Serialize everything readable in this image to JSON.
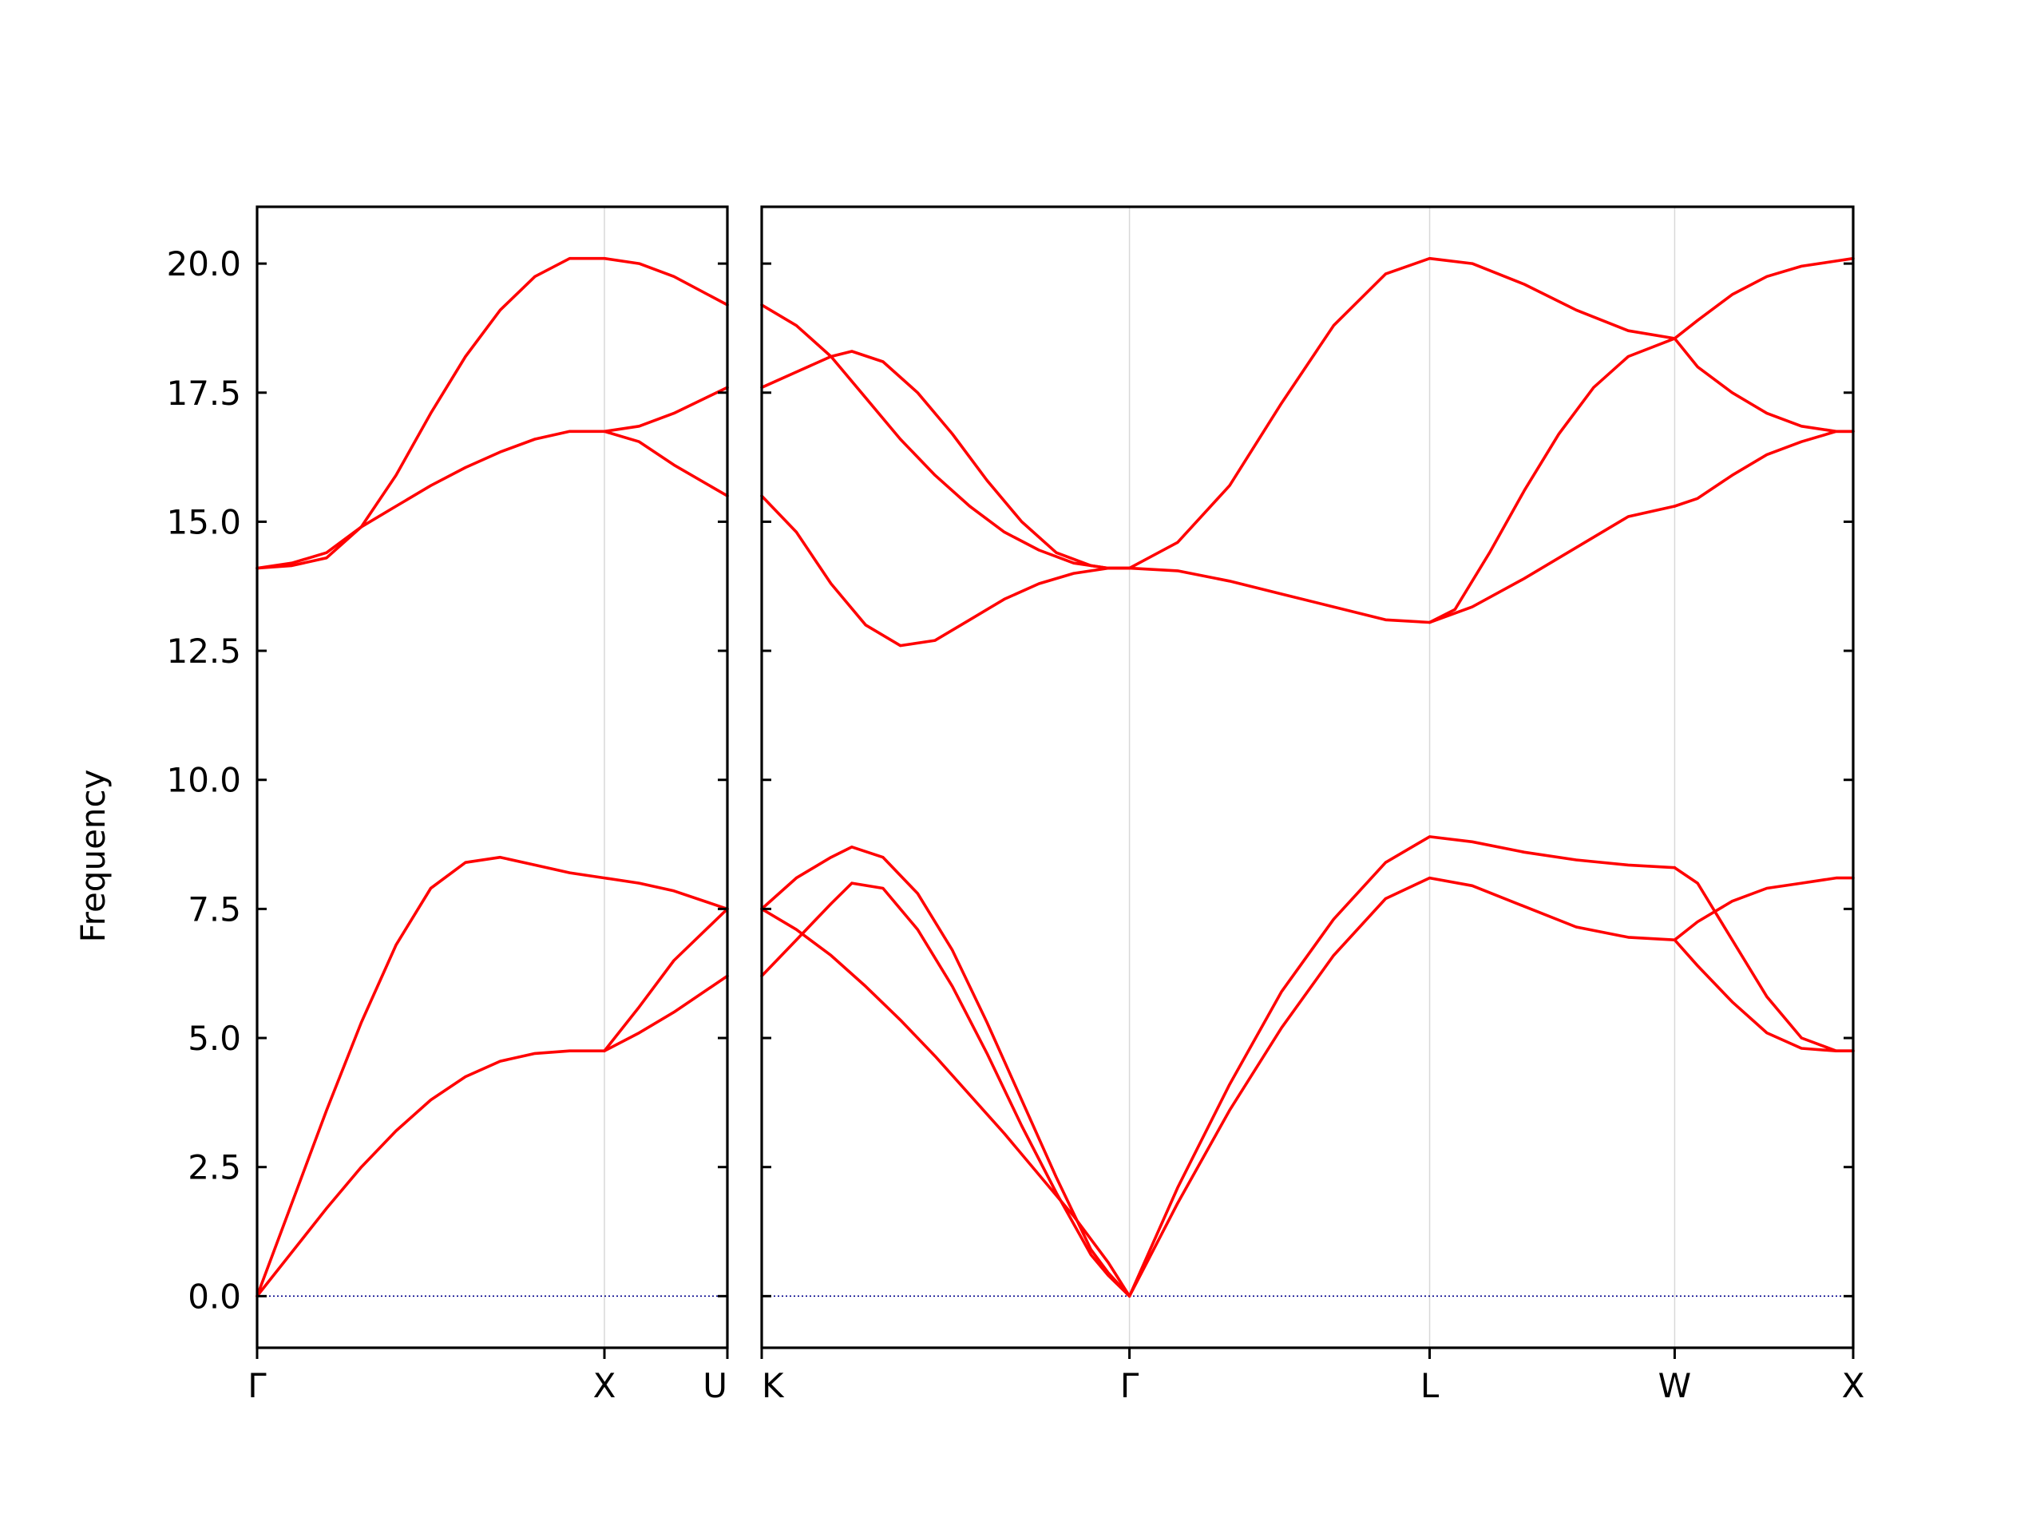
{
  "chart_data": {
    "type": "line",
    "ylabel": "Frequency",
    "ylim": [
      -1.0,
      21.1
    ],
    "yticks": [
      0.0,
      2.5,
      5.0,
      7.5,
      10.0,
      12.5,
      15.0,
      17.5,
      20.0
    ],
    "ytick_labels": [
      "0.0",
      "2.5",
      "5.0",
      "7.5",
      "10.0",
      "12.5",
      "15.0",
      "17.5",
      "20.0"
    ],
    "line_color": "#ff0000",
    "zero_line_color": "#00008b",
    "segments": [
      {
        "path": "Γ-X-U",
        "x_range": [
          0,
          1.354
        ],
        "points": [
          {
            "x": 0,
            "label": "Γ"
          },
          {
            "x": 1.0,
            "label": "X"
          },
          {
            "x": 1.354,
            "label": "U"
          }
        ],
        "series": [
          {
            "x": [
              0,
              0.1,
              0.2,
              0.3,
              0.4,
              0.5,
              0.6,
              0.7,
              0.8,
              0.9,
              1.0,
              1.1,
              1.2,
              1.354
            ],
            "y": [
              0,
              1.8,
              3.6,
              5.3,
              6.8,
              7.9,
              8.4,
              8.5,
              8.35,
              8.2,
              8.1,
              8.0,
              7.85,
              7.5
            ]
          },
          {
            "x": [
              0,
              0.1,
              0.2,
              0.3,
              0.4,
              0.5,
              0.6,
              0.7,
              0.8,
              0.9,
              1.0,
              1.1,
              1.2,
              1.354
            ],
            "y": [
              0,
              0.85,
              1.7,
              2.5,
              3.2,
              3.8,
              4.25,
              4.55,
              4.7,
              4.75,
              4.75,
              5.1,
              5.5,
              6.2
            ]
          },
          {
            "x": [
              1.0,
              1.1,
              1.2,
              1.354
            ],
            "y": [
              4.75,
              5.6,
              6.5,
              7.5
            ]
          },
          {
            "x": [
              0,
              0.1,
              0.2,
              0.3,
              0.4,
              0.5,
              0.6,
              0.7,
              0.8,
              0.9,
              1.0,
              1.1,
              1.2,
              1.354
            ],
            "y": [
              14.1,
              14.15,
              14.3,
              14.9,
              15.3,
              15.7,
              16.05,
              16.35,
              16.6,
              16.75,
              16.75,
              16.55,
              16.1,
              15.5
            ]
          },
          {
            "x": [
              1.0,
              1.1,
              1.2,
              1.354
            ],
            "y": [
              16.75,
              16.85,
              17.1,
              17.6
            ]
          },
          {
            "x": [
              0,
              0.1,
              0.2,
              0.3,
              0.4,
              0.5,
              0.6,
              0.7,
              0.8,
              0.9,
              1.0,
              1.1,
              1.2,
              1.354
            ],
            "y": [
              14.1,
              14.2,
              14.4,
              14.9,
              15.9,
              17.1,
              18.2,
              19.1,
              19.75,
              20.1,
              20.1,
              20.0,
              19.75,
              19.2
            ]
          }
        ]
      },
      {
        "path": "K-Γ-L-W-X",
        "x_range": [
          0,
          3.149
        ],
        "points": [
          {
            "x": 0,
            "label": "K"
          },
          {
            "x": 1.061,
            "label": "Γ"
          },
          {
            "x": 1.927,
            "label": "L"
          },
          {
            "x": 2.634,
            "label": "W"
          },
          {
            "x": 3.149,
            "label": "X"
          }
        ],
        "series": [
          {
            "x": [
              0,
              0.1,
              0.2,
              0.3,
              0.4,
              0.5,
              0.6,
              0.7,
              0.8,
              0.9,
              1.0,
              1.061
            ],
            "y": [
              7.5,
              7.1,
              6.6,
              6.0,
              5.35,
              4.65,
              3.9,
              3.15,
              2.35,
              1.55,
              0.65,
              0
            ]
          },
          {
            "x": [
              0,
              0.1,
              0.2,
              0.26,
              0.35,
              0.45,
              0.55,
              0.65,
              0.75,
              0.85,
              0.95,
              1.0,
              1.061
            ],
            "y": [
              6.2,
              6.9,
              7.6,
              8.0,
              7.9,
              7.1,
              6.0,
              4.7,
              3.3,
              2.0,
              0.8,
              0.4,
              0
            ]
          },
          {
            "x": [
              0,
              0.1,
              0.2,
              0.26,
              0.35,
              0.45,
              0.55,
              0.65,
              0.75,
              0.85,
              0.95,
              1.0,
              1.061
            ],
            "y": [
              7.5,
              8.1,
              8.5,
              8.7,
              8.5,
              7.8,
              6.7,
              5.3,
              3.8,
              2.3,
              0.9,
              0.45,
              0
            ]
          },
          {
            "x": [
              1.061,
              1.2,
              1.35,
              1.5,
              1.65,
              1.8,
              1.927,
              2.05,
              2.2,
              2.35,
              2.5,
              2.634
            ],
            "y": [
              0,
              1.8,
              3.6,
              5.2,
              6.6,
              7.7,
              8.1,
              7.95,
              7.55,
              7.15,
              6.95,
              6.9
            ]
          },
          {
            "x": [
              1.061,
              1.2,
              1.35,
              1.5,
              1.65,
              1.8,
              1.927,
              2.05,
              2.2,
              2.35,
              2.5,
              2.634
            ],
            "y": [
              0,
              2.1,
              4.1,
              5.9,
              7.3,
              8.4,
              8.9,
              8.8,
              8.6,
              8.45,
              8.35,
              8.3
            ]
          },
          {
            "x": [
              2.634,
              2.7,
              2.8,
              2.9,
              3.0,
              3.1,
              3.149
            ],
            "y": [
              6.9,
              7.25,
              7.65,
              7.9,
              8.0,
              8.1,
              8.1
            ]
          },
          {
            "x": [
              2.634,
              2.7,
              2.8,
              2.9,
              3.0,
              3.1,
              3.149
            ],
            "y": [
              6.9,
              6.4,
              5.7,
              5.1,
              4.8,
              4.75,
              4.75
            ]
          },
          {
            "x": [
              2.634,
              2.7,
              2.8,
              2.9,
              3.0,
              3.1,
              3.149
            ],
            "y": [
              8.3,
              8.0,
              6.9,
              5.8,
              5.0,
              4.75,
              4.75
            ]
          },
          {
            "x": [
              0,
              0.1,
              0.2,
              0.3,
              0.4,
              0.5,
              0.6,
              0.7,
              0.8,
              0.9,
              1.0,
              1.061
            ],
            "y": [
              15.5,
              14.8,
              13.8,
              13.0,
              12.6,
              12.7,
              13.1,
              13.5,
              13.8,
              14.0,
              14.1,
              14.1
            ]
          },
          {
            "x": [
              0,
              0.1,
              0.2,
              0.3,
              0.4,
              0.5,
              0.6,
              0.7,
              0.8,
              0.9,
              1.0,
              1.061
            ],
            "y": [
              19.2,
              18.8,
              18.2,
              17.4,
              16.6,
              15.9,
              15.3,
              14.8,
              14.45,
              14.2,
              14.1,
              14.1
            ]
          },
          {
            "x": [
              0,
              0.1,
              0.2,
              0.26,
              0.35,
              0.45,
              0.55,
              0.65,
              0.75,
              0.85,
              0.95,
              1.0,
              1.061
            ],
            "y": [
              17.6,
              17.9,
              18.2,
              18.3,
              18.1,
              17.5,
              16.7,
              15.8,
              15.0,
              14.4,
              14.15,
              14.1,
              14.1
            ]
          },
          {
            "x": [
              1.061,
              1.2,
              1.35,
              1.5,
              1.65,
              1.8,
              1.927,
              2.05,
              2.2,
              2.35,
              2.5,
              2.634
            ],
            "y": [
              14.1,
              14.05,
              13.85,
              13.6,
              13.35,
              13.1,
              13.05,
              13.35,
              13.9,
              14.5,
              15.1,
              15.3
            ]
          },
          {
            "x": [
              1.061,
              1.2,
              1.35,
              1.5,
              1.65,
              1.8,
              1.927,
              2.05,
              2.2,
              2.35,
              2.5,
              2.634
            ],
            "y": [
              14.1,
              14.6,
              15.7,
              17.3,
              18.8,
              19.8,
              20.1,
              20.0,
              19.6,
              19.1,
              18.7,
              18.55
            ]
          },
          {
            "x": [
              1.927,
              2.0,
              2.1,
              2.2,
              2.3,
              2.4,
              2.5,
              2.634
            ],
            "y": [
              13.05,
              13.3,
              14.4,
              15.6,
              16.7,
              17.6,
              18.2,
              18.55
            ]
          },
          {
            "x": [
              2.634,
              2.7,
              2.8,
              2.9,
              3.0,
              3.1,
              3.149
            ],
            "y": [
              15.3,
              15.45,
              15.9,
              16.3,
              16.55,
              16.75,
              16.75
            ]
          },
          {
            "x": [
              2.634,
              2.7,
              2.8,
              2.9,
              3.0,
              3.1,
              3.149
            ],
            "y": [
              18.55,
              18.0,
              17.5,
              17.1,
              16.85,
              16.75,
              16.75
            ]
          },
          {
            "x": [
              2.634,
              2.7,
              2.8,
              2.9,
              3.0,
              3.1,
              3.149
            ],
            "y": [
              18.55,
              18.9,
              19.4,
              19.75,
              19.95,
              20.05,
              20.1
            ]
          }
        ]
      }
    ]
  }
}
